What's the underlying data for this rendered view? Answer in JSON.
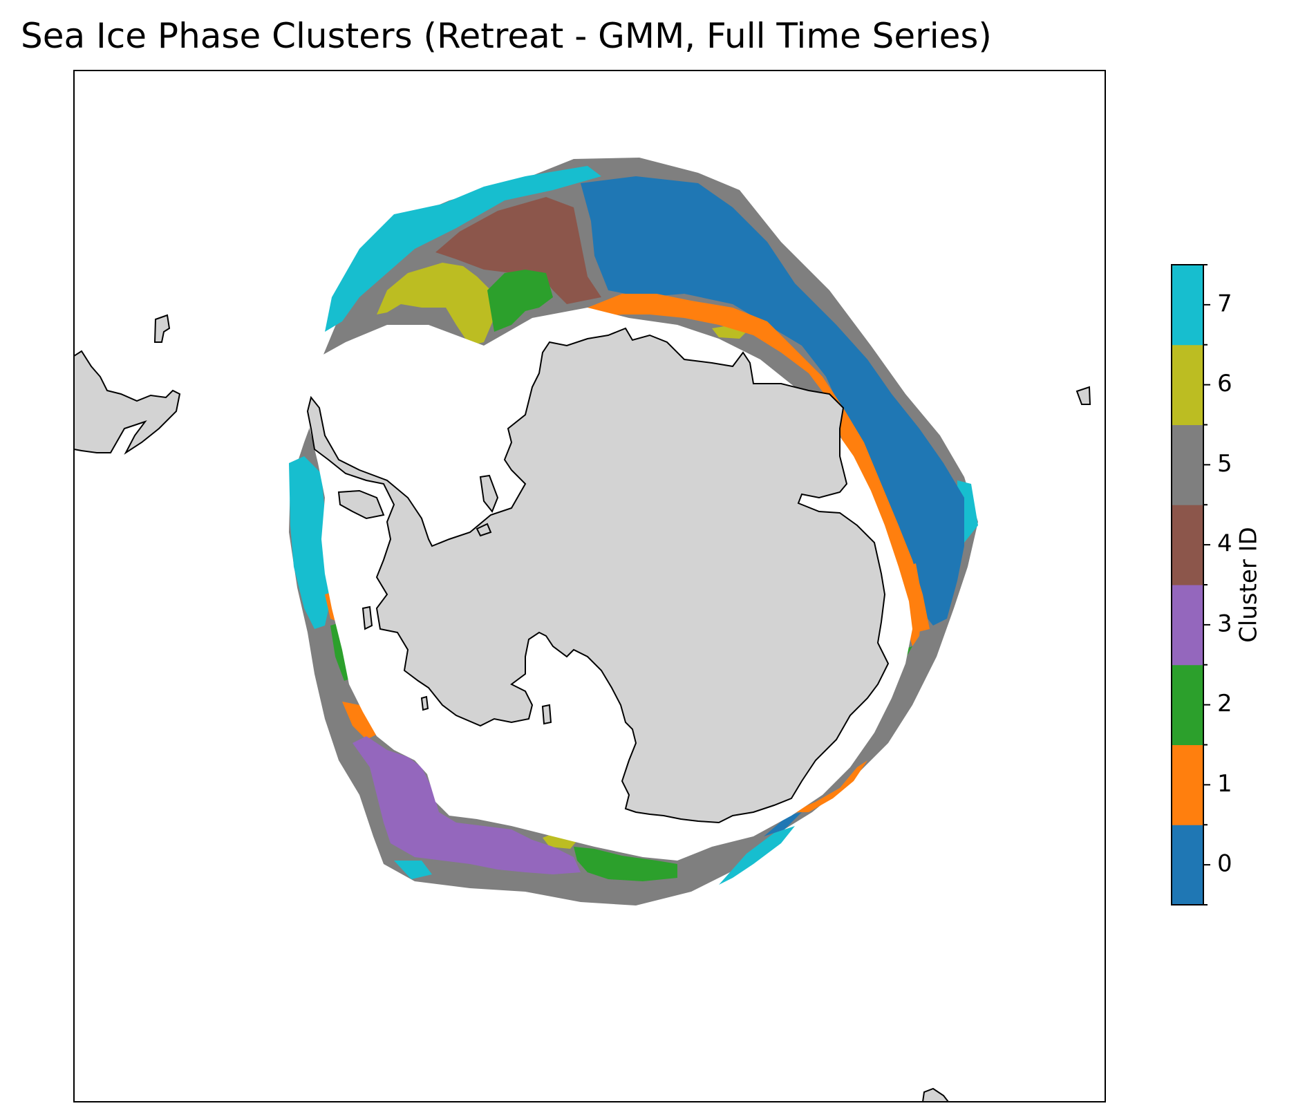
{
  "title": "Sea Ice Phase Clusters (Retreat - GMM, Full Time Series)",
  "colorbar": {
    "label": "Cluster ID",
    "clusters": [
      {
        "id": "0",
        "color": "#1f77b4"
      },
      {
        "id": "1",
        "color": "#ff7f0e"
      },
      {
        "id": "2",
        "color": "#2ca02c"
      },
      {
        "id": "3",
        "color": "#9467bd"
      },
      {
        "id": "4",
        "color": "#8c564b"
      },
      {
        "id": "5",
        "color": "#7f7f7f"
      },
      {
        "id": "6",
        "color": "#bcbd22"
      },
      {
        "id": "7",
        "color": "#17becf"
      }
    ]
  },
  "map": {
    "land_color": "#d3d3d3",
    "coastline_color": "#000000",
    "open_water_color": "#ffffff"
  }
}
